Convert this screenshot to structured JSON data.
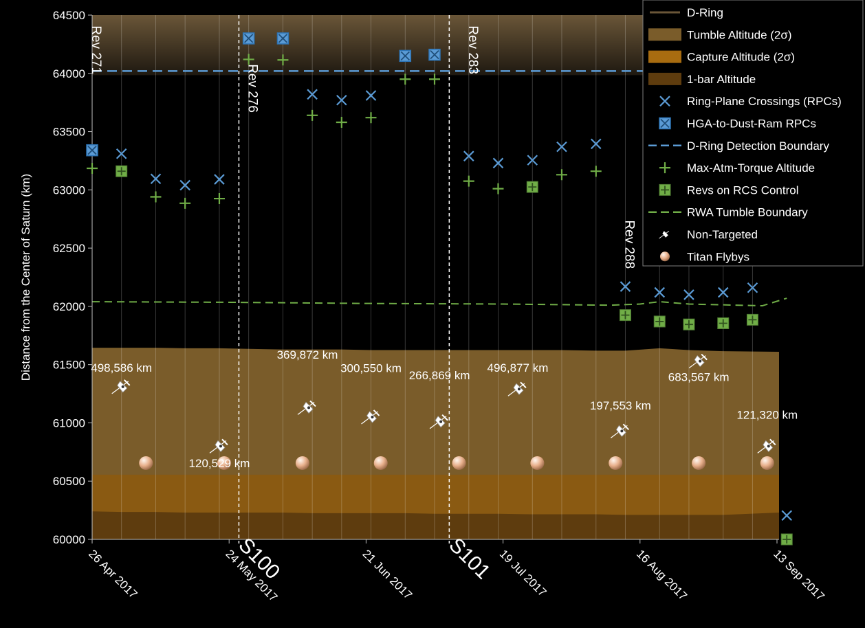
{
  "chart_data": {
    "type": "scatter",
    "ylabel": "Distance from the Center of Saturn (km)",
    "ylim": [
      60000,
      64500
    ],
    "yticks": [
      "60000",
      "60500",
      "61000",
      "61500",
      "62000",
      "62500",
      "63000",
      "63500",
      "64000",
      "64500"
    ],
    "xlim": [
      "2017-04-26",
      "2017-09-14"
    ],
    "xticks": [
      {
        "date": "2017-04-26",
        "label": "26 Apr 2017"
      },
      {
        "date": "2017-05-24",
        "label": "24 May 2017"
      },
      {
        "date": "2017-06-21",
        "label": "21 Jun 2017"
      },
      {
        "date": "2017-07-19",
        "label": "19 Jul 2017"
      },
      {
        "date": "2017-08-16",
        "label": "16 Aug 2017"
      },
      {
        "date": "2017-09-13",
        "label": "13 Sep 2017"
      }
    ],
    "rev_dates": [
      "2017-04-26",
      "2017-05-02",
      "2017-05-09",
      "2017-05-15",
      "2017-05-22",
      "2017-05-28",
      "2017-06-04",
      "2017-06-10",
      "2017-06-16",
      "2017-06-22",
      "2017-06-29",
      "2017-07-05",
      "2017-07-12",
      "2017-07-18",
      "2017-07-25",
      "2017-07-31",
      "2017-08-07",
      "2017-08-13",
      "2017-08-20",
      "2017-08-26",
      "2017-09-02",
      "2017-09-08"
    ],
    "bands": [
      {
        "name": "D-Ring",
        "color": "#4a3c28",
        "values": [
          64500
        ]
      },
      {
        "name": "Tumble Altitude (2σ)",
        "color": "#7a5c2a",
        "values": [
          61645,
          61645,
          61645,
          61640,
          61640,
          61635,
          61630,
          61630,
          61630,
          61625,
          61625,
          61625,
          61625,
          61625,
          61625,
          61625,
          61620,
          61620,
          61640,
          61625,
          61615,
          61610
        ]
      },
      {
        "name": "Capture Altitude (2σ)",
        "color": "#8a5a12",
        "values": [
          60555
        ]
      },
      {
        "name": "1-bar Altitude",
        "color": "#5e3c0e",
        "values": [
          60240,
          60235,
          60235,
          60230,
          60230,
          60230,
          60230,
          60225,
          60225,
          60225,
          60225,
          60220,
          60220,
          60220,
          60215,
          60215,
          60215,
          60210,
          60210,
          60210,
          60210,
          60230
        ]
      }
    ],
    "series": [
      {
        "name": "Ring-Plane Crossings (RPCs)",
        "marker": "x",
        "color": "#5b9bd5",
        "points": [
          [
            "2017-05-02",
            63310
          ],
          [
            "2017-05-09",
            63095
          ],
          [
            "2017-05-15",
            63040
          ],
          [
            "2017-05-22",
            63090
          ],
          [
            "2017-06-10",
            63820
          ],
          [
            "2017-06-16",
            63770
          ],
          [
            "2017-06-22",
            63810
          ],
          [
            "2017-07-12",
            63290
          ],
          [
            "2017-07-18",
            63230
          ],
          [
            "2017-07-25",
            63255
          ],
          [
            "2017-07-31",
            63370
          ],
          [
            "2017-08-07",
            63395
          ],
          [
            "2017-08-13",
            62170
          ],
          [
            "2017-08-20",
            62120
          ],
          [
            "2017-08-26",
            62100
          ],
          [
            "2017-09-02",
            62120
          ],
          [
            "2017-09-08",
            62160
          ],
          [
            "2017-09-15",
            60205
          ]
        ]
      },
      {
        "name": "HGA-to-Dust-Ram RPCs",
        "marker": "boxx",
        "color": "#5b9bd5",
        "points": [
          [
            "2017-04-26",
            63340
          ],
          [
            "2017-05-28",
            64300
          ],
          [
            "2017-06-04",
            64300
          ],
          [
            "2017-06-29",
            64150
          ],
          [
            "2017-07-05",
            64160
          ]
        ]
      },
      {
        "name": "Max-Atm-Torque Altitude",
        "marker": "plus",
        "color": "#70ad47",
        "points": [
          [
            "2017-04-26",
            63185
          ],
          [
            "2017-05-09",
            62940
          ],
          [
            "2017-05-15",
            62885
          ],
          [
            "2017-05-22",
            62925
          ],
          [
            "2017-05-28",
            64120
          ],
          [
            "2017-06-04",
            64115
          ],
          [
            "2017-06-10",
            63640
          ],
          [
            "2017-06-16",
            63580
          ],
          [
            "2017-06-22",
            63620
          ],
          [
            "2017-06-29",
            63950
          ],
          [
            "2017-07-05",
            63950
          ],
          [
            "2017-07-12",
            63075
          ],
          [
            "2017-07-18",
            63010
          ],
          [
            "2017-07-31",
            63130
          ],
          [
            "2017-08-07",
            63160
          ]
        ]
      },
      {
        "name": "Revs on RCS Control",
        "marker": "boxplus",
        "color": "#70ad47",
        "points": [
          [
            "2017-05-02",
            63160
          ],
          [
            "2017-07-25",
            63025
          ],
          [
            "2017-08-13",
            61925
          ],
          [
            "2017-08-20",
            61870
          ],
          [
            "2017-08-26",
            61845
          ],
          [
            "2017-09-02",
            61855
          ],
          [
            "2017-09-08",
            61885
          ],
          [
            "2017-09-15",
            60000
          ]
        ]
      },
      {
        "name": "D-Ring Detection Boundary",
        "marker": "line-dash",
        "color": "#5b9bd5",
        "y": 64020
      },
      {
        "name": "RWA Tumble Boundary",
        "marker": "line-dash",
        "color": "#70ad47",
        "points": [
          [
            "2017-04-26",
            62040
          ],
          [
            "2017-05-24",
            62035
          ],
          [
            "2017-06-21",
            62025
          ],
          [
            "2017-07-19",
            62020
          ],
          [
            "2017-08-10",
            62010
          ],
          [
            "2017-08-16",
            62020
          ],
          [
            "2017-08-20",
            62040
          ],
          [
            "2017-08-26",
            62020
          ],
          [
            "2017-09-10",
            62005
          ],
          [
            "2017-09-15",
            62070
          ]
        ]
      },
      {
        "name": "Non-Targeted",
        "marker": "probe",
        "color": "#ffffff",
        "points": [
          [
            "2017-05-02",
            61310
          ],
          [
            "2017-05-22",
            60800
          ],
          [
            "2017-06-09",
            61130
          ],
          [
            "2017-06-22",
            61050
          ],
          [
            "2017-07-06",
            61010
          ],
          [
            "2017-07-22",
            61290
          ],
          [
            "2017-08-12",
            60930
          ],
          [
            "2017-08-28",
            61530
          ],
          [
            "2017-09-11",
            60800
          ]
        ],
        "labels": [
          "498,586 km",
          "120,529 km",
          "369,872 km",
          "300,550 km",
          "266,869 km",
          "496,877 km",
          "197,553 km",
          "683,567 km",
          "121,320 km"
        ],
        "label_y": [
          61440,
          60620,
          61550,
          61435,
          61375,
          61440,
          61115,
          61360,
          61035
        ]
      },
      {
        "name": "Titan Flybys",
        "marker": "sphere",
        "color": "#e8b08c",
        "points": [
          [
            "2017-05-07",
            60655
          ],
          [
            "2017-05-23",
            60655
          ],
          [
            "2017-06-08",
            60655
          ],
          [
            "2017-06-24",
            60655
          ],
          [
            "2017-07-10",
            60655
          ],
          [
            "2017-07-26",
            60655
          ],
          [
            "2017-08-11",
            60655
          ],
          [
            "2017-08-28",
            60655
          ],
          [
            "2017-09-11",
            60655
          ]
        ]
      }
    ],
    "rev_labels": [
      {
        "text": "Rev 271",
        "date": "2017-04-26",
        "y": 64410
      },
      {
        "text": "Rev 276",
        "date": "2017-05-28",
        "y": 64080
      },
      {
        "text": "Rev 283",
        "date": "2017-07-12",
        "y": 64410
      },
      {
        "text": "Rev 288",
        "date": "2017-08-13",
        "y": 62740
      }
    ],
    "sections": [
      {
        "text": "S100",
        "date": "2017-05-26"
      },
      {
        "text": "S101",
        "date": "2017-07-08"
      }
    ],
    "legend_position": "top-right",
    "grid": "vertical at each rev"
  }
}
